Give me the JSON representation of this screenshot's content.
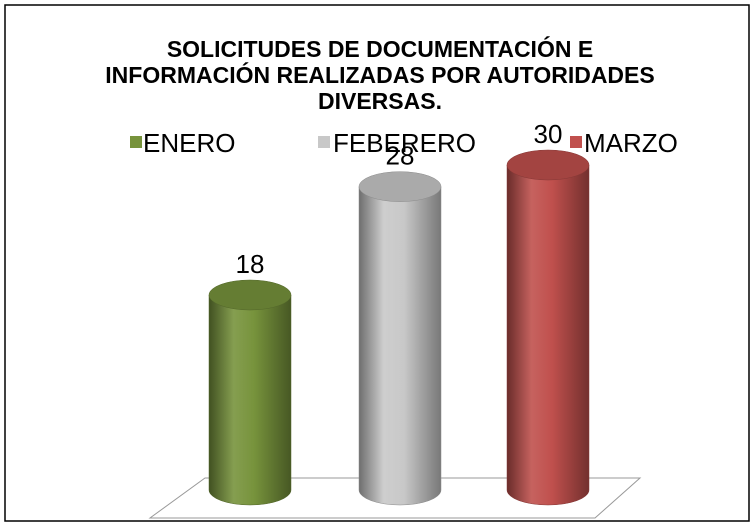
{
  "chart_data": {
    "type": "bar",
    "title": "SOLICITUDES DE DOCUMENTACIÓN E INFORMACIÓN REALIZADAS POR AUTORIDADES DIVERSAS.",
    "categories": [
      null
    ],
    "series": [
      {
        "name": "ENERO",
        "color": "#77933c",
        "values": [
          18
        ]
      },
      {
        "name": "FEBERERO",
        "color": "#c8c8c8",
        "values": [
          28
        ]
      },
      {
        "name": "MARZO",
        "color": "#c0504d",
        "values": [
          30
        ]
      }
    ],
    "legend": "top"
  }
}
